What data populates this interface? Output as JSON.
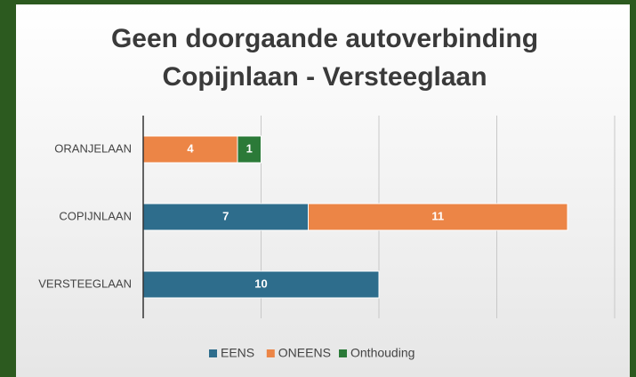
{
  "chart_data": {
    "type": "stacked_barh",
    "title": [
      "Geen doorgaande autoverbinding",
      "Copijnlaan - Versteeglaan"
    ],
    "categories": [
      "ORANJELAAN",
      "COPIJNLAAN",
      "VERSTEEGLAAN"
    ],
    "series": [
      {
        "name": "EENS",
        "color": "#2e6d8c",
        "values": [
          null,
          7,
          10
        ]
      },
      {
        "name": "ONEENS",
        "color": "#ec8546",
        "values": [
          4,
          11,
          null
        ]
      },
      {
        "name": "Onthouding",
        "color": "#2b7a38",
        "values": [
          1,
          null,
          null
        ]
      }
    ],
    "xlim": [
      0,
      20
    ],
    "xticks": [
      0,
      5,
      10,
      15,
      20
    ],
    "grid": true,
    "legend": "bottom"
  }
}
